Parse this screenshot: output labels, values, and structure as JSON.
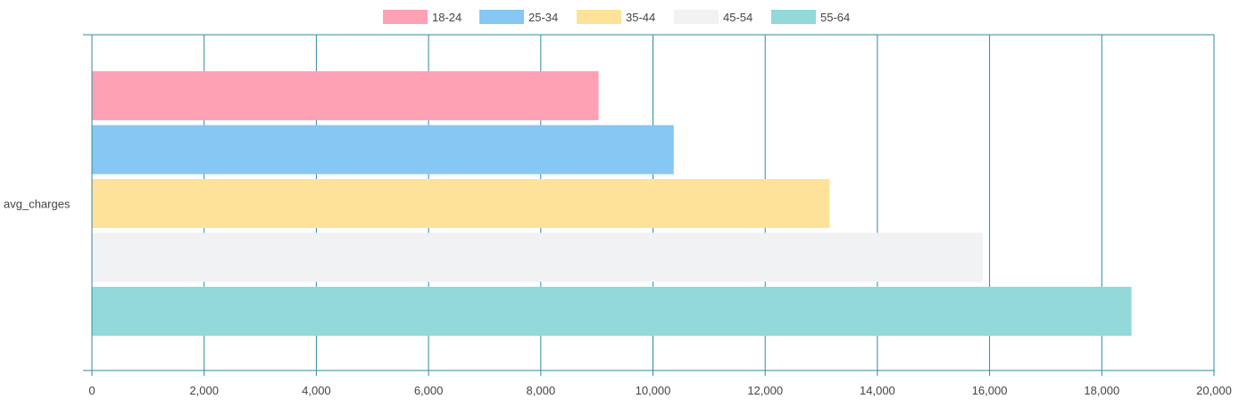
{
  "chart_data": {
    "type": "bar",
    "orientation": "horizontal",
    "categories": [
      "avg_charges"
    ],
    "series": [
      {
        "name": "18-24",
        "values": [
          9030
        ],
        "color": "#ffa1b5"
      },
      {
        "name": "25-34",
        "values": [
          10370
        ],
        "color": "#86c7f3"
      },
      {
        "name": "35-44",
        "values": [
          13150
        ],
        "color": "#ffe29a"
      },
      {
        "name": "45-54",
        "values": [
          15880
        ],
        "color": "#f1f2f4"
      },
      {
        "name": "55-64",
        "values": [
          18530
        ],
        "color": "#93d9d9"
      }
    ],
    "xlim": [
      0,
      20000
    ],
    "x_ticks": [
      "0",
      "2,000",
      "4,000",
      "6,000",
      "8,000",
      "10,000",
      "12,000",
      "14,000",
      "16,000",
      "18,000",
      "20,000"
    ],
    "x_tick_values": [
      0,
      2000,
      4000,
      6000,
      8000,
      10000,
      12000,
      14000,
      16000,
      18000,
      20000
    ],
    "grid": true,
    "grid_color": "#2f8aa3",
    "legend_position": "top-center",
    "title": "",
    "xlabel": "",
    "ylabel": ""
  }
}
